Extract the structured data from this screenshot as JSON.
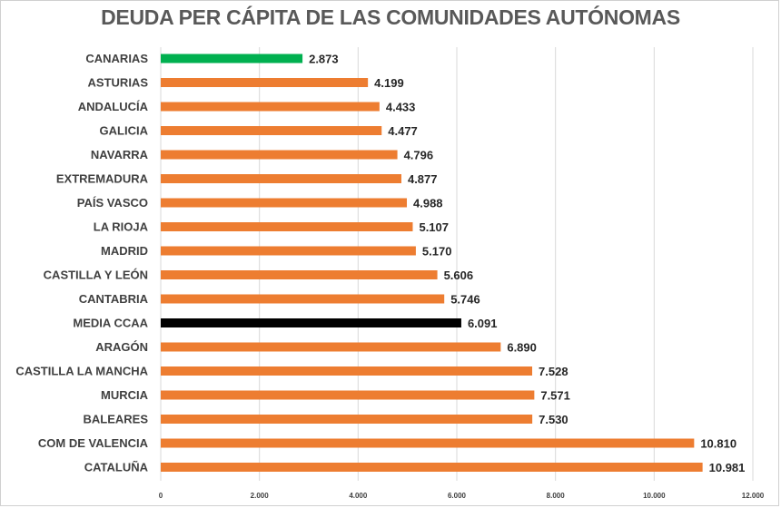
{
  "chart_data": {
    "type": "bar",
    "orientation": "horizontal",
    "title": "DEUDA PER CÁPITA DE LAS COMUNIDADES AUTÓNOMAS",
    "categories": [
      "CANARIAS",
      "ASTURIAS",
      "ANDALUCÍA",
      "GALICIA",
      "NAVARRA",
      "EXTREMADURA",
      "PAÍS VASCO",
      "LA RIOJA",
      "MADRID",
      "CASTILLA Y LEÓN",
      "CANTABRIA",
      "MEDIA CCAA",
      "ARAGÓN",
      "CASTILLA LA MANCHA",
      "MURCIA",
      "BALEARES",
      "COM DE VALENCIA",
      "CATALUÑA"
    ],
    "values": [
      2873,
      4199,
      4433,
      4477,
      4796,
      4877,
      4988,
      5107,
      5170,
      5606,
      5746,
      6091,
      6890,
      7528,
      7571,
      7530,
      10810,
      10981
    ],
    "value_labels": [
      "2.873",
      "4.199",
      "4.433",
      "4.477",
      "4.796",
      "4.877",
      "4.988",
      "5.107",
      "5.170",
      "5.606",
      "5.746",
      "6.091",
      "6.890",
      "7.528",
      "7.571",
      "7.530",
      "10.810",
      "10.981"
    ],
    "bar_colors": [
      "#00b050",
      "#ed7d31",
      "#ed7d31",
      "#ed7d31",
      "#ed7d31",
      "#ed7d31",
      "#ed7d31",
      "#ed7d31",
      "#ed7d31",
      "#ed7d31",
      "#ed7d31",
      "#000000",
      "#ed7d31",
      "#ed7d31",
      "#ed7d31",
      "#ed7d31",
      "#ed7d31",
      "#ed7d31"
    ],
    "xlim": [
      0,
      12000
    ],
    "x_ticks": [
      0,
      2000,
      4000,
      6000,
      8000,
      10000,
      12000
    ],
    "x_tick_labels": [
      "0",
      "2.000",
      "4.000",
      "6.000",
      "8.000",
      "10.000",
      "12.000"
    ],
    "grid": "vertical",
    "legend": "none",
    "xlabel": "",
    "ylabel": ""
  }
}
